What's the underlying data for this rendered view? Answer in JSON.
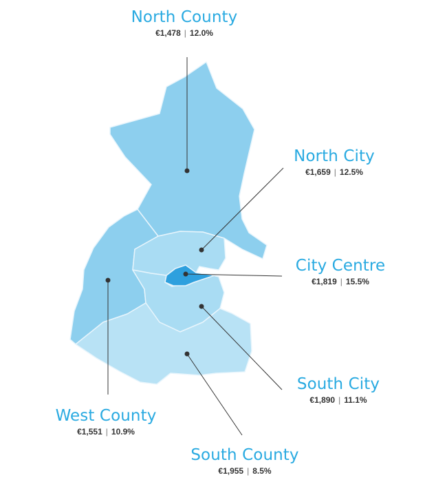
{
  "colors": {
    "accent": "#29aae1",
    "stats_text": "#333333",
    "north_county": "#8dcfee",
    "west_county": "#8dcfee",
    "north_city": "#a9dcf3",
    "south_city": "#a9dcf3",
    "south_county": "#b8e2f5",
    "city_centre": "#2ea0de",
    "border": "#e8f5fc",
    "leader_line": "#333333"
  },
  "separator": "|",
  "regions": [
    {
      "key": "north_county",
      "name": "North County",
      "price": "€1,478",
      "change": "12.0%"
    },
    {
      "key": "north_city",
      "name": "North City",
      "price": "€1,659",
      "change": "12.5%"
    },
    {
      "key": "city_centre",
      "name": "City Centre",
      "price": "€1,819",
      "change": "15.5%"
    },
    {
      "key": "south_city",
      "name": "South City",
      "price": "€1,890",
      "change": "11.1%"
    },
    {
      "key": "west_county",
      "name": "West County",
      "price": "€1,551",
      "change": "10.9%"
    },
    {
      "key": "south_county",
      "name": "South County",
      "price": "€1,955",
      "change": "8.5%"
    }
  ]
}
